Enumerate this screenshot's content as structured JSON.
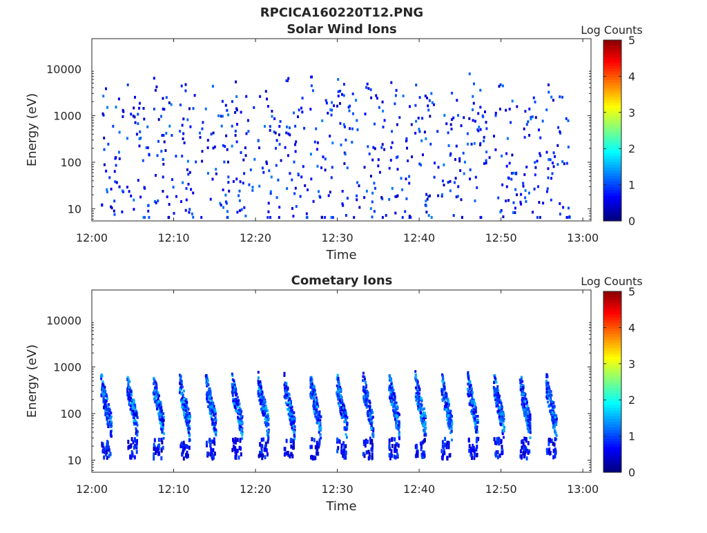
{
  "figure": {
    "title": "RPCICA160220T12.PNG"
  },
  "chart_data": [
    {
      "type": "heatmap",
      "title": "Solar Wind Ions",
      "xlabel": "Time",
      "ylabel": "Energy (eV)",
      "x_ticks": [
        "12:00",
        "12:10",
        "12:20",
        "12:30",
        "12:40",
        "12:50",
        "13:00"
      ],
      "x_range_minutes": [
        0,
        61
      ],
      "y_ticks": [
        {
          "value": 10,
          "label": "10"
        },
        {
          "value": 100,
          "label": "100"
        },
        {
          "value": 1000,
          "label": "1000"
        },
        {
          "value": 10000,
          "label": "10000"
        }
      ],
      "y_scale": "log",
      "y_range": [
        5.5,
        45000
      ],
      "colorbar": {
        "label": "Log Counts",
        "min": 0,
        "max": 5,
        "ticks": [
          "0",
          "1",
          "2",
          "3",
          "4",
          "5"
        ],
        "colormap": "jet"
      },
      "description_level": "mostly 0-0.5 log counts, sparse scattered pixels between ~10 eV and ~10000 eV, concentrated 200-2000 eV",
      "sweep_period_minutes": 3.2,
      "density": "sparse"
    },
    {
      "type": "heatmap",
      "title": "Cometary Ions",
      "xlabel": "Time",
      "ylabel": "Energy (eV)",
      "x_ticks": [
        "12:00",
        "12:10",
        "12:20",
        "12:30",
        "12:40",
        "12:50",
        "13:00"
      ],
      "x_range_minutes": [
        0,
        61
      ],
      "y_ticks": [
        {
          "value": 10,
          "label": "10"
        },
        {
          "value": 100,
          "label": "100"
        },
        {
          "value": 1000,
          "label": "1000"
        },
        {
          "value": 10000,
          "label": "10000"
        }
      ],
      "y_scale": "log",
      "y_range": [
        5.5,
        45000
      ],
      "colorbar": {
        "label": "Log Counts",
        "min": 0,
        "max": 5,
        "ticks": [
          "0",
          "1",
          "2",
          "3",
          "4",
          "5"
        ],
        "colormap": "jet"
      },
      "sweep_period_minutes": 3.2,
      "density": "dense",
      "energy_band_high": [
        100,
        900
      ],
      "energy_band_low": [
        12,
        32
      ]
    }
  ]
}
